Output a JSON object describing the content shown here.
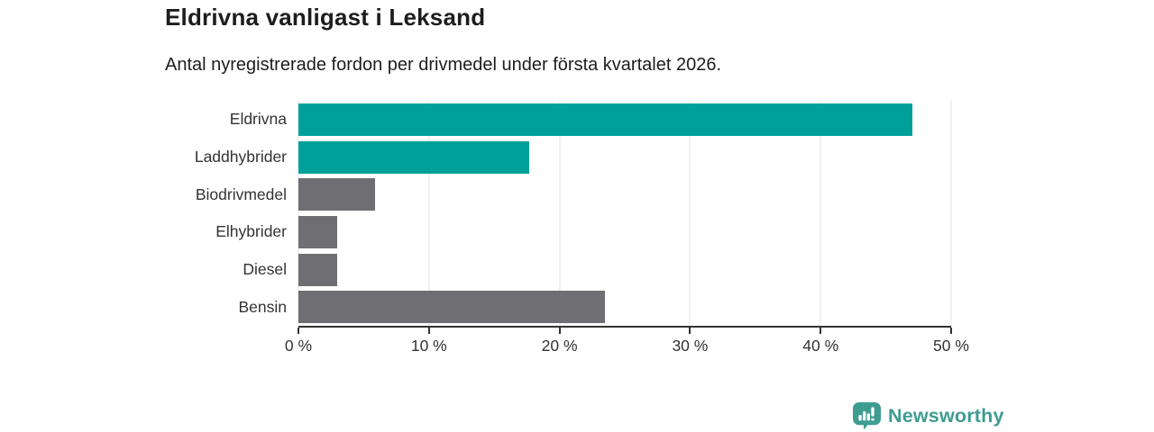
{
  "chart_data": {
    "type": "bar",
    "orientation": "horizontal",
    "title": "Eldrivna vanligast i Leksand",
    "subtitle": "Antal nyregistrerade fordon per drivmedel under första kvartalet 2026.",
    "categories": [
      "Eldrivna",
      "Laddhybrider",
      "Biodrivmedel",
      "Elhybrider",
      "Diesel",
      "Bensin"
    ],
    "values": [
      47,
      17.7,
      5.9,
      3,
      3,
      23.5
    ],
    "unit": "%",
    "bar_colors": [
      "#00a09a",
      "#00a09a",
      "#6e6e73",
      "#6e6e73",
      "#6e6e73",
      "#6e6e73"
    ],
    "xlim": [
      0,
      50
    ],
    "x_ticks": [
      0,
      10,
      20,
      30,
      40,
      50
    ],
    "x_tick_labels": [
      "0 %",
      "10 %",
      "20 %",
      "30 %",
      "40 %",
      "50 %"
    ],
    "grid": true,
    "legend": false
  },
  "colors": {
    "accent_teal": "#00a09a",
    "bar_gray": "#6e6e73",
    "axis": "#333333",
    "gridline": "#e2e2e2",
    "logo_teal": "#3e9c90",
    "title_text": "#1d1d1d"
  },
  "footer": {
    "brand": "Newsworthy"
  }
}
